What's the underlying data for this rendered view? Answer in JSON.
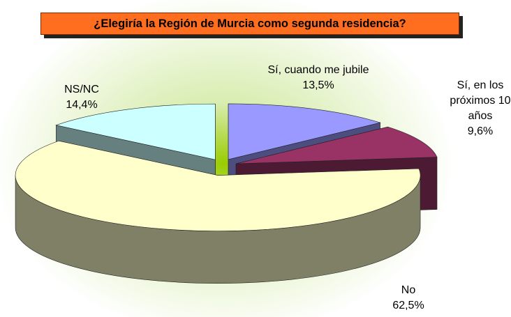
{
  "chart_data": {
    "type": "pie",
    "title": "¿Elegiría la Región de Murcia como segunda residencia?",
    "categories": [
      "Sí, cuando me jubile",
      "Sí, en los próximos 10 años",
      "No",
      "NS/NC"
    ],
    "values": [
      13.5,
      9.6,
      62.5,
      14.4
    ],
    "value_labels": [
      "13,5%",
      "9,6%",
      "62,5%",
      "14,4%"
    ],
    "colors": [
      "#9999ff",
      "#993366",
      "#ffffcc",
      "#ccffff"
    ]
  }
}
